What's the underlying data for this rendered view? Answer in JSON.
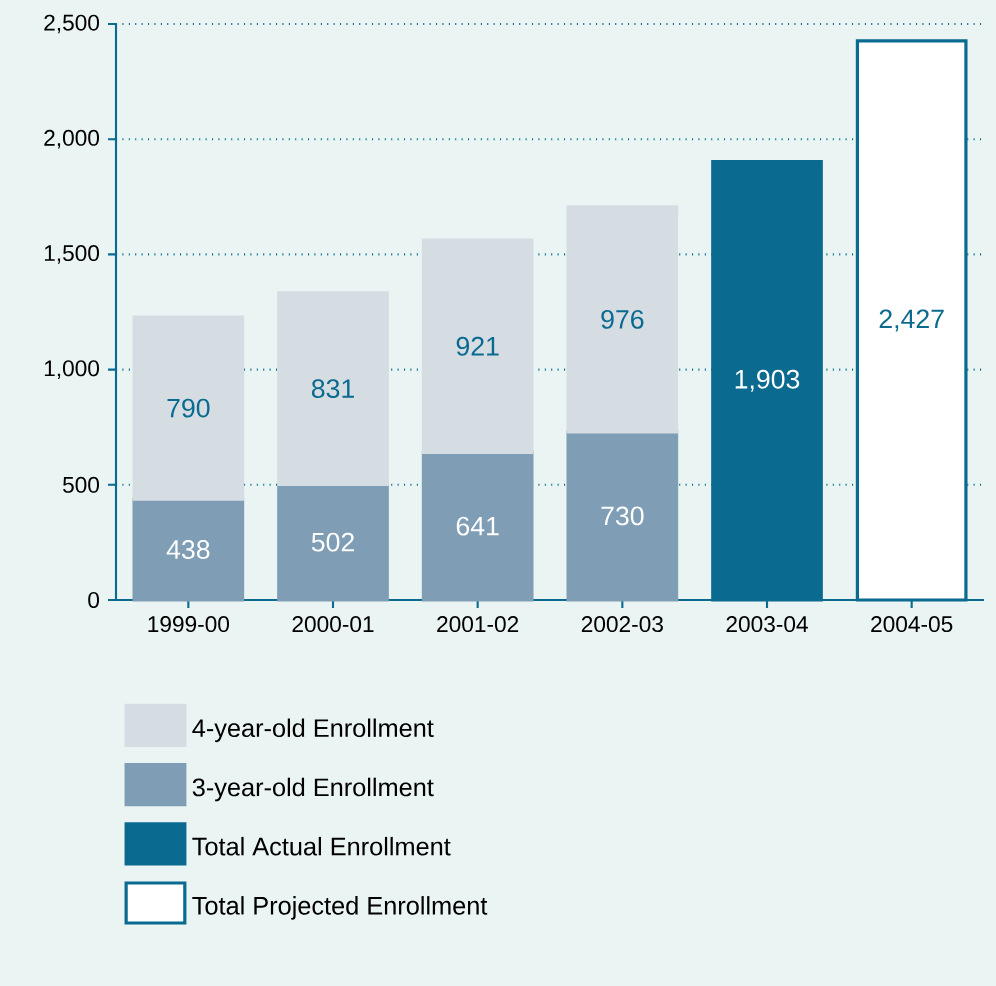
{
  "chart_data": {
    "type": "bar",
    "stacked": true,
    "categories": [
      "1999-00",
      "2000-01",
      "2001-02",
      "2002-03",
      "2003-04",
      "2004-05"
    ],
    "series": [
      {
        "name": "3-year-old Enrollment",
        "color": "#7f9db4",
        "values": [
          438,
          502,
          641,
          730,
          null,
          null
        ],
        "value_labels": [
          "438",
          "502",
          "641",
          "730",
          null,
          null
        ]
      },
      {
        "name": "4-year-old Enrollment",
        "color": "#d5dde3",
        "values": [
          790,
          831,
          921,
          976,
          null,
          null
        ],
        "value_labels": [
          "790",
          "831",
          "921",
          "976",
          null,
          null
        ]
      },
      {
        "name": "Total Actual Enrollment",
        "color": "#0b6a8f",
        "values": [
          null,
          null,
          null,
          null,
          1903,
          null
        ],
        "value_labels": [
          null,
          null,
          null,
          null,
          "1,903",
          null
        ]
      },
      {
        "name": "Total Projected Enrollment",
        "color": "#ffffff",
        "values": [
          null,
          null,
          null,
          null,
          null,
          2427
        ],
        "value_labels": [
          null,
          null,
          null,
          null,
          null,
          "2,427"
        ]
      }
    ],
    "ylim": [
      0,
      2500
    ],
    "yticks": [
      0,
      500,
      {
        "value": 1000,
        "label": "1,000"
      },
      {
        "value": 1500,
        "label": "1,500"
      },
      {
        "value": 2000,
        "label": "2,000"
      },
      {
        "value": 2500,
        "label": "2,500"
      }
    ],
    "grid": "y",
    "legend": "bottom"
  }
}
